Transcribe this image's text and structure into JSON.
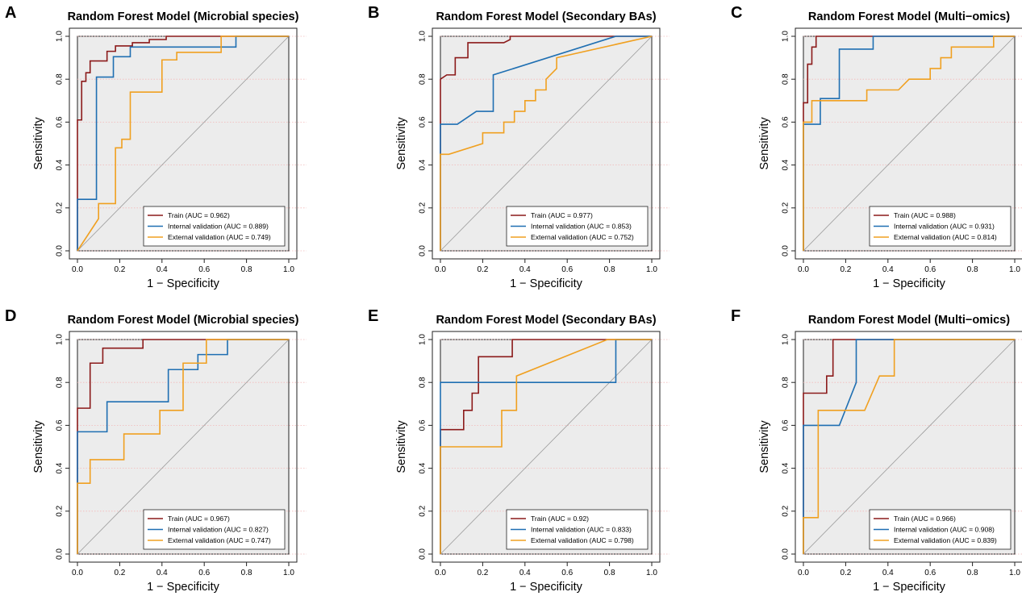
{
  "figure": {
    "colors": {
      "train": "#8b1a1a",
      "internal": "#1f6fb2",
      "external": "#f0a020",
      "panel_bg": "#ececec",
      "diagonal": "#9a9a9a",
      "gridline": "#f2b8b8"
    }
  },
  "chart_data": [
    {
      "letter": "A",
      "type": "line",
      "title": "Random Forest Model (Microbial species)",
      "xlabel": "1 − Specificity",
      "ylabel": "Sensitivity",
      "xlim": [
        0,
        1
      ],
      "ylim": [
        0,
        1
      ],
      "xticks": [
        "0.0",
        "0.2",
        "0.4",
        "0.6",
        "0.8",
        "1.0"
      ],
      "yticks": [
        "0.0",
        "0.2",
        "0.4",
        "0.6",
        "0.8",
        "1.0"
      ],
      "grid": "horizontal dotted",
      "legend_position": "bottom-right",
      "series": [
        {
          "name": "Train (AUC = 0.962)",
          "color_key": "train",
          "x": [
            0,
            0,
            0.02,
            0.02,
            0.04,
            0.04,
            0.06,
            0.06,
            0.14,
            0.14,
            0.18,
            0.18,
            0.26,
            0.26,
            0.34,
            0.34,
            0.42,
            0.42,
            1
          ],
          "y": [
            0,
            0.61,
            0.61,
            0.79,
            0.79,
            0.83,
            0.83,
            0.885,
            0.885,
            0.93,
            0.93,
            0.955,
            0.955,
            0.97,
            0.97,
            0.985,
            0.985,
            1,
            1
          ]
        },
        {
          "name": "Internal validation (AUC = 0.889)",
          "color_key": "internal",
          "x": [
            0,
            0,
            0.09,
            0.09,
            0.17,
            0.17,
            0.25,
            0.25,
            0.75,
            0.75,
            1
          ],
          "y": [
            0,
            0.24,
            0.24,
            0.81,
            0.81,
            0.905,
            0.905,
            0.95,
            0.95,
            1,
            1
          ]
        },
        {
          "name": "External validation (AUC = 0.749)",
          "color_key": "external",
          "x": [
            0,
            0.1,
            0.1,
            0.18,
            0.18,
            0.21,
            0.21,
            0.23,
            0.23,
            0.25,
            0.25,
            0.4,
            0.4,
            0.47,
            0.47,
            0.68,
            0.68,
            1
          ],
          "y": [
            0,
            0.15,
            0.22,
            0.22,
            0.48,
            0.48,
            0.52,
            0.52,
            0.52,
            0.52,
            0.74,
            0.74,
            0.89,
            0.89,
            0.925,
            0.925,
            1,
            1
          ]
        }
      ]
    },
    {
      "letter": "B",
      "type": "line",
      "title": "Random Forest Model (Secondary BAs)",
      "xlabel": "1 − Specificity",
      "ylabel": "Sensitivity",
      "xlim": [
        0,
        1
      ],
      "ylim": [
        0,
        1
      ],
      "xticks": [
        "0.0",
        "0.2",
        "0.4",
        "0.6",
        "0.8",
        "1.0"
      ],
      "yticks": [
        "0.0",
        "0.2",
        "0.4",
        "0.6",
        "0.8",
        "1.0"
      ],
      "grid": "horizontal dotted",
      "legend_position": "bottom-right",
      "series": [
        {
          "name": "Train (AUC = 0.977)",
          "color_key": "train",
          "x": [
            0,
            0,
            0.03,
            0.03,
            0.07,
            0.07,
            0.13,
            0.13,
            0.3,
            0.33,
            0.33,
            1
          ],
          "y": [
            0,
            0.8,
            0.82,
            0.82,
            0.82,
            0.9,
            0.9,
            0.97,
            0.97,
            0.985,
            1,
            1
          ]
        },
        {
          "name": "Internal validation (AUC = 0.853)",
          "color_key": "internal",
          "x": [
            0,
            0,
            0.08,
            0.08,
            0.17,
            0.17,
            0.25,
            0.25,
            0.83,
            1
          ],
          "y": [
            0,
            0.59,
            0.59,
            0.59,
            0.65,
            0.65,
            0.65,
            0.82,
            1,
            1
          ]
        },
        {
          "name": "External validation (AUC = 0.752)",
          "color_key": "external",
          "x": [
            0,
            0,
            0.04,
            0.2,
            0.2,
            0.3,
            0.3,
            0.35,
            0.35,
            0.4,
            0.4,
            0.45,
            0.45,
            0.5,
            0.5,
            0.55,
            0.55,
            1
          ],
          "y": [
            0,
            0.45,
            0.45,
            0.5,
            0.55,
            0.55,
            0.6,
            0.6,
            0.65,
            0.65,
            0.7,
            0.7,
            0.75,
            0.75,
            0.8,
            0.85,
            0.9,
            1
          ]
        }
      ]
    },
    {
      "letter": "C",
      "type": "line",
      "title": "Random Forest Model (Multi−omics)",
      "xlabel": "1 − Specificity",
      "ylabel": "Sensitivity",
      "xlim": [
        0,
        1
      ],
      "ylim": [
        0,
        1
      ],
      "xticks": [
        "0.0",
        "0.2",
        "0.4",
        "0.6",
        "0.8",
        "1.0"
      ],
      "yticks": [
        "0.0",
        "0.2",
        "0.4",
        "0.6",
        "0.8",
        "1.0"
      ],
      "grid": "horizontal dotted",
      "legend_position": "bottom-right",
      "series": [
        {
          "name": "Train (AUC = 0.988)",
          "color_key": "train",
          "x": [
            0,
            0,
            0.02,
            0.02,
            0.04,
            0.04,
            0.06,
            0.06,
            1
          ],
          "y": [
            0,
            0.69,
            0.69,
            0.87,
            0.87,
            0.95,
            0.95,
            1,
            1
          ]
        },
        {
          "name": "Internal validation (AUC = 0.931)",
          "color_key": "internal",
          "x": [
            0,
            0,
            0.08,
            0.08,
            0.17,
            0.17,
            0.33,
            0.33,
            1
          ],
          "y": [
            0,
            0.59,
            0.59,
            0.71,
            0.71,
            0.94,
            0.94,
            1,
            1
          ]
        },
        {
          "name": "External validation (AUC = 0.814)",
          "color_key": "external",
          "x": [
            0,
            0,
            0.04,
            0.04,
            0.3,
            0.3,
            0.45,
            0.5,
            0.6,
            0.6,
            0.65,
            0.65,
            0.7,
            0.7,
            0.9,
            0.9,
            1
          ],
          "y": [
            0,
            0.6,
            0.6,
            0.7,
            0.7,
            0.75,
            0.75,
            0.8,
            0.8,
            0.85,
            0.85,
            0.9,
            0.9,
            0.95,
            0.95,
            1,
            1
          ]
        }
      ]
    },
    {
      "letter": "D",
      "type": "line",
      "title": "Random Forest Model (Microbial species)",
      "xlabel": "1 − Specificity",
      "ylabel": "Sensitivity",
      "xlim": [
        0,
        1
      ],
      "ylim": [
        0,
        1
      ],
      "xticks": [
        "0.0",
        "0.2",
        "0.4",
        "0.6",
        "0.8",
        "1.0"
      ],
      "yticks": [
        "0.0",
        "0.2",
        "0.4",
        "0.6",
        "0.8",
        "1.0"
      ],
      "grid": "horizontal dotted",
      "legend_position": "bottom-right",
      "series": [
        {
          "name": "Train (AUC = 0.967)",
          "color_key": "train",
          "x": [
            0,
            0,
            0.06,
            0.06,
            0.12,
            0.12,
            0.31,
            0.31,
            1
          ],
          "y": [
            0,
            0.68,
            0.68,
            0.89,
            0.89,
            0.96,
            0.96,
            1,
            1
          ]
        },
        {
          "name": "Internal validation (AUC = 0.827)",
          "color_key": "internal",
          "x": [
            0,
            0,
            0.14,
            0.14,
            0.43,
            0.43,
            0.57,
            0.57,
            0.71,
            0.71,
            1
          ],
          "y": [
            0,
            0.57,
            0.57,
            0.71,
            0.71,
            0.86,
            0.86,
            0.93,
            0.93,
            1,
            1
          ]
        },
        {
          "name": "External validation (AUC = 0.747)",
          "color_key": "external",
          "x": [
            0,
            0,
            0.06,
            0.06,
            0.22,
            0.22,
            0.39,
            0.39,
            0.5,
            0.5,
            0.61,
            0.61,
            1
          ],
          "y": [
            0,
            0.33,
            0.33,
            0.44,
            0.44,
            0.56,
            0.56,
            0.67,
            0.67,
            0.89,
            0.89,
            1,
            1
          ]
        }
      ]
    },
    {
      "letter": "E",
      "type": "line",
      "title": "Random Forest Model (Secondary BAs)",
      "xlabel": "1 − Specificity",
      "ylabel": "Sensitivity",
      "xlim": [
        0,
        1
      ],
      "ylim": [
        0,
        1
      ],
      "xticks": [
        "0.0",
        "0.2",
        "0.4",
        "0.6",
        "0.8",
        "1.0"
      ],
      "yticks": [
        "0.0",
        "0.2",
        "0.4",
        "0.6",
        "0.8",
        "1.0"
      ],
      "grid": "horizontal dotted",
      "legend_position": "bottom-right",
      "series": [
        {
          "name": "Train (AUC = 0.92)",
          "color_key": "train",
          "x": [
            0,
            0,
            0.11,
            0.11,
            0.15,
            0.15,
            0.18,
            0.18,
            0.34,
            0.34,
            1
          ],
          "y": [
            0,
            0.58,
            0.58,
            0.67,
            0.67,
            0.75,
            0.75,
            0.92,
            0.92,
            1,
            1
          ]
        },
        {
          "name": "Internal validation (AUC = 0.833)",
          "color_key": "internal",
          "x": [
            0,
            0,
            0.83,
            0.83,
            1
          ],
          "y": [
            0,
            0.8,
            0.8,
            1,
            1
          ]
        },
        {
          "name": "External validation (AUC = 0.798)",
          "color_key": "external",
          "x": [
            0,
            0,
            0.29,
            0.29,
            0.36,
            0.36,
            0.79,
            1
          ],
          "y": [
            0,
            0.5,
            0.5,
            0.67,
            0.67,
            0.83,
            1,
            1
          ]
        }
      ]
    },
    {
      "letter": "F",
      "type": "line",
      "title": "Random Forest Model (Multi−omics)",
      "xlabel": "1 − Specificity",
      "ylabel": "Sensitivity",
      "xlim": [
        0,
        1
      ],
      "ylim": [
        0,
        1
      ],
      "xticks": [
        "0.0",
        "0.2",
        "0.4",
        "0.6",
        "0.8",
        "1.0"
      ],
      "yticks": [
        "0.0",
        "0.2",
        "0.4",
        "0.6",
        "0.8",
        "1.0"
      ],
      "grid": "horizontal dotted",
      "legend_position": "bottom-right",
      "series": [
        {
          "name": "Train (AUC = 0.966)",
          "color_key": "train",
          "x": [
            0,
            0,
            0.11,
            0.11,
            0.14,
            0.14,
            0.18,
            0.18,
            1
          ],
          "y": [
            0,
            0.75,
            0.75,
            0.83,
            0.83,
            1,
            1,
            1,
            1
          ]
        },
        {
          "name": "Internal validation (AUC = 0.908)",
          "color_key": "internal",
          "x": [
            0,
            0,
            0.17,
            0.25,
            0.25,
            1
          ],
          "y": [
            0,
            0.6,
            0.6,
            0.8,
            1,
            1
          ]
        },
        {
          "name": "External validation (AUC = 0.839)",
          "color_key": "external",
          "x": [
            0,
            0,
            0.07,
            0.07,
            0.29,
            0.36,
            0.43,
            0.43,
            1
          ],
          "y": [
            0,
            0.17,
            0.17,
            0.67,
            0.67,
            0.83,
            0.83,
            1,
            1
          ]
        }
      ]
    }
  ]
}
